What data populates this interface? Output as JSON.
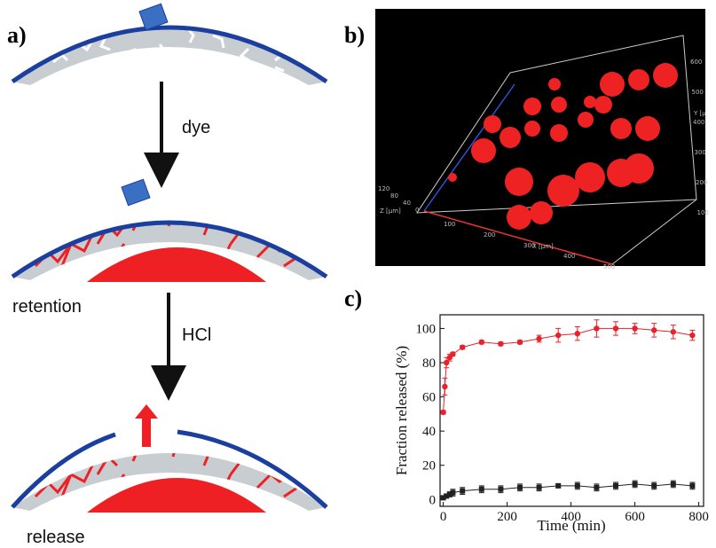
{
  "panel_a": {
    "label": "a)",
    "step1": "dye",
    "state1": "retention",
    "step2": "HCl",
    "state2": "release"
  },
  "panel_b": {
    "label": "b)",
    "x_axis": "X [µm]",
    "z_axis": "Z [µm]",
    "y_axis": "Y [µ",
    "x_ticks": [
      "100",
      "200",
      "300",
      "400",
      "500"
    ],
    "z_ticks": [
      "120",
      "80",
      "40",
      "0"
    ],
    "y_ticks": [
      "600",
      "500",
      "400",
      "300",
      "200",
      "100"
    ]
  },
  "panel_c": {
    "label": "c)"
  },
  "chart_data": {
    "type": "line",
    "x_label": "Time (min)",
    "y_label": "Fraction released (%)",
    "xlim": [
      -10,
      815
    ],
    "ylim": [
      -4,
      108
    ],
    "xticks": [
      0,
      200,
      400,
      600,
      800
    ],
    "yticks": [
      0,
      20,
      40,
      60,
      80,
      100
    ],
    "series": [
      {
        "color": "#e8212b",
        "marker": "circle",
        "x": [
          0,
          5,
          10,
          20,
          30,
          60,
          120,
          180,
          240,
          300,
          360,
          420,
          480,
          540,
          600,
          660,
          720,
          780
        ],
        "values": [
          51,
          66,
          80,
          83,
          85,
          89,
          92,
          91,
          92,
          94,
          96,
          97,
          100,
          100,
          100,
          99,
          98,
          96
        ],
        "errors": [
          1,
          5,
          3,
          2,
          1,
          1,
          1,
          1,
          1,
          2,
          4,
          4,
          5,
          4,
          3,
          4,
          4,
          3
        ]
      },
      {
        "color": "#222222",
        "marker": "square",
        "x": [
          0,
          10,
          20,
          30,
          60,
          120,
          180,
          240,
          300,
          360,
          420,
          480,
          540,
          600,
          660,
          720,
          780
        ],
        "values": [
          1,
          2,
          3,
          4,
          5,
          6,
          6,
          7,
          7,
          8,
          8,
          7,
          8,
          9,
          8,
          9,
          8
        ],
        "errors": [
          0.5,
          1,
          1.5,
          2,
          2,
          2,
          2,
          2,
          2,
          1,
          2,
          2,
          2,
          2,
          2,
          2,
          2
        ]
      }
    ]
  }
}
